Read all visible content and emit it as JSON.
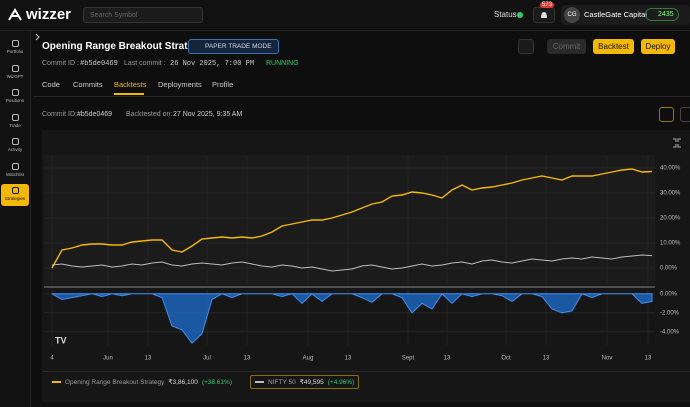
{
  "header": {
    "logo": "wizzer",
    "search": "Search Symbol",
    "status": "Status",
    "notifications": "573",
    "avatar": "CG",
    "account": "CastleGate Capital",
    "credits": "2435"
  },
  "sidebar": [
    "Portfolio",
    "WizGPT",
    "Positions",
    "Trade",
    "Activity",
    "Watchlist",
    "Strategies"
  ],
  "strategy": {
    "title": "Opening Range Breakout Strategy",
    "mode": "PAPER TRADE MODE",
    "commit_label": "Commit ID :",
    "commit_id": "#b5de0469",
    "last_commit_label": "Last commit :",
    "last_commit": "26 Nov 2025, 7:00 PM",
    "state": "RUNNING",
    "buttons": [
      "Commit",
      "Backtest",
      "Deploy"
    ]
  },
  "tabs": [
    "Code",
    "Commits",
    "Backtests",
    "Deployments",
    "Profile"
  ],
  "backtest": {
    "commit_label": "Commit ID:",
    "commit_id": "#b5de0469",
    "date_label": "Backtested on:",
    "date": "27 Nov 2025, 9:35 AM"
  },
  "chart_data": [
    {
      "type": "line",
      "xlim": [
        0,
        60
      ],
      "ylim": [
        -6.8,
        45.2
      ],
      "yticks": [
        {
          "value": 40,
          "label": "40.00%"
        },
        {
          "value": 30,
          "label": "30.00%"
        },
        {
          "value": 20,
          "label": "20.00%"
        },
        {
          "value": 10,
          "label": "10.00%"
        },
        {
          "value": 0,
          "label": "0.00%"
        }
      ],
      "grid": true,
      "series": [
        {
          "name": "Opening Range Breakout Strategy",
          "color": "#f5b800",
          "legend_value": "₹3,86,100",
          "legend_change": "(+38.61%)",
          "values": [
            0,
            7.2,
            8,
            9.2,
            9.6,
            9.6,
            9.2,
            9.2,
            10.4,
            10.8,
            11.2,
            11.2,
            7.2,
            6.4,
            8.8,
            11.6,
            12,
            12.4,
            12,
            12.4,
            12,
            12.8,
            14.4,
            16.8,
            17.6,
            18.4,
            19.2,
            19.2,
            20,
            21.2,
            22.4,
            24,
            25.6,
            26.4,
            28.8,
            29.2,
            30.4,
            30,
            29.2,
            28,
            31.2,
            33.2,
            31.2,
            32,
            32.4,
            33.2,
            34,
            35.2,
            36,
            36.8,
            36,
            35.2,
            36.8,
            36.8,
            36.8,
            37.6,
            38.4,
            39.2,
            39.6,
            38.4,
            38.6
          ]
        },
        {
          "name": "NIFTY 50",
          "color": "#bdbdbd",
          "legend_value": "₹49,595",
          "legend_change": "(+4.96%)",
          "values": [
            1.2,
            1.6,
            0.8,
            0.4,
            0.8,
            1.2,
            0.4,
            0.8,
            1.6,
            1.2,
            2,
            2.4,
            1.2,
            0.8,
            1.6,
            2,
            1.6,
            1.2,
            2,
            2.4,
            1.6,
            0.8,
            0.4,
            1.2,
            0.8,
            0,
            0.4,
            -0.4,
            -1.2,
            -0.8,
            -0.4,
            0.8,
            1.2,
            0.4,
            -0.4,
            0,
            0.8,
            1.6,
            0.8,
            1.2,
            2,
            2.4,
            1.6,
            2.8,
            3.2,
            2.4,
            2,
            2.8,
            3.6,
            3.2,
            2.8,
            3.6,
            4,
            3.6,
            4.4,
            4,
            3.6,
            4.4,
            4.8,
            5.2,
            4.96
          ]
        }
      ]
    },
    {
      "type": "area",
      "xlim": [
        0,
        60
      ],
      "ylim": [
        -5.4,
        0.4
      ],
      "yticks": [
        {
          "value": 0,
          "label": "0.00%"
        },
        {
          "value": -2,
          "label": "-2.00%"
        },
        {
          "value": -4,
          "label": "-4.00%"
        }
      ],
      "xticks": [
        {
          "value": 0,
          "label": "4"
        },
        {
          "value": 5.6,
          "label": "Jun"
        },
        {
          "value": 9.6,
          "label": "13"
        },
        {
          "value": 15.5,
          "label": "Jul"
        },
        {
          "value": 19.5,
          "label": "13"
        },
        {
          "value": 25.6,
          "label": "Aug"
        },
        {
          "value": 29.6,
          "label": "13"
        },
        {
          "value": 35.6,
          "label": "Sept"
        },
        {
          "value": 39.5,
          "label": "13"
        },
        {
          "value": 45.4,
          "label": "Oct"
        },
        {
          "value": 49.4,
          "label": "13"
        },
        {
          "value": 55.5,
          "label": "Nov"
        },
        {
          "value": 59.6,
          "label": "13"
        }
      ],
      "grid": true,
      "color": "#1e6fd0",
      "values": [
        0,
        -0.6,
        -0.4,
        -0.2,
        0,
        -0.3,
        0,
        -0.2,
        0,
        0,
        0,
        -0.4,
        -3.4,
        -3.8,
        -5.2,
        -4.2,
        -0.6,
        0,
        -0.4,
        0,
        0,
        0,
        0,
        -0.3,
        0,
        -1,
        0,
        -0.8,
        0,
        0,
        0,
        -0.4,
        -0.9,
        0,
        0,
        -0.4,
        -2,
        -1,
        -1.6,
        0,
        -1,
        0,
        -0.3,
        0,
        0,
        -0.2,
        -0.8,
        0,
        0,
        -0.3,
        -1.6,
        -2,
        -1.8,
        0,
        -0.4,
        0,
        0,
        0,
        0,
        -1,
        -0.8
      ]
    }
  ]
}
